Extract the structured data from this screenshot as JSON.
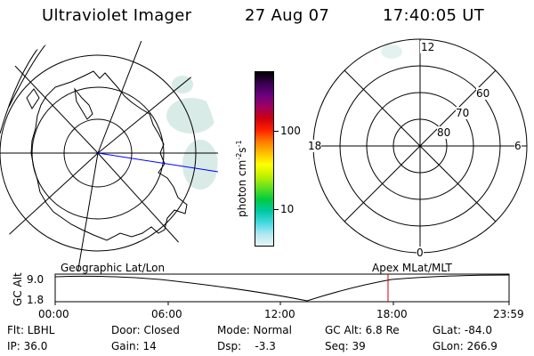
{
  "header": {
    "instrument": "Ultraviolet Imager",
    "date": "27 Aug 07",
    "time": "17:40:05 UT"
  },
  "colorbar": {
    "unit_label": "photon cm",
    "unit_exp1": "-2",
    "unit_mid": "s",
    "unit_exp2": "-1",
    "tick_100": "100",
    "tick_10": "10",
    "colors": [
      "#000000",
      "#3a0050",
      "#6a0080",
      "#a00060",
      "#cc0010",
      "#ff2000",
      "#ff7a00",
      "#ffbe00",
      "#ffff00",
      "#c0f000",
      "#60e020",
      "#00cc40",
      "#00c8a0",
      "#40d8e0",
      "#b0e8f0",
      "#e8f4f6"
    ]
  },
  "polar_plot": {
    "mlt_top": "12",
    "mlt_bottom": "0",
    "mlt_left": "18",
    "mlt_right": "6",
    "lat_60": "60",
    "lat_70": "70",
    "lat_80": "80"
  },
  "timeline": {
    "label_left": "Geographic Lat/Lon",
    "label_right": "Apex MLat/MLT",
    "axis_title": "GC Alt",
    "y_top": "9.0",
    "y_bottom": "1.8",
    "ticks": [
      "00:00",
      "06:00",
      "12:00",
      "18:00",
      "23:59"
    ]
  },
  "status": {
    "flt": "Flt: LBHL",
    "ip": "IP: 36.0",
    "door": "Door: Closed",
    "gain": "Gain: 14",
    "mode": "Mode: Normal",
    "dsp": "Dsp:    -3.3",
    "gcalt": "GC Alt: 6.8 Re",
    "seq": "Seq: 39",
    "glat": "GLat: -84.0",
    "glon": "GLon: 266.9"
  }
}
